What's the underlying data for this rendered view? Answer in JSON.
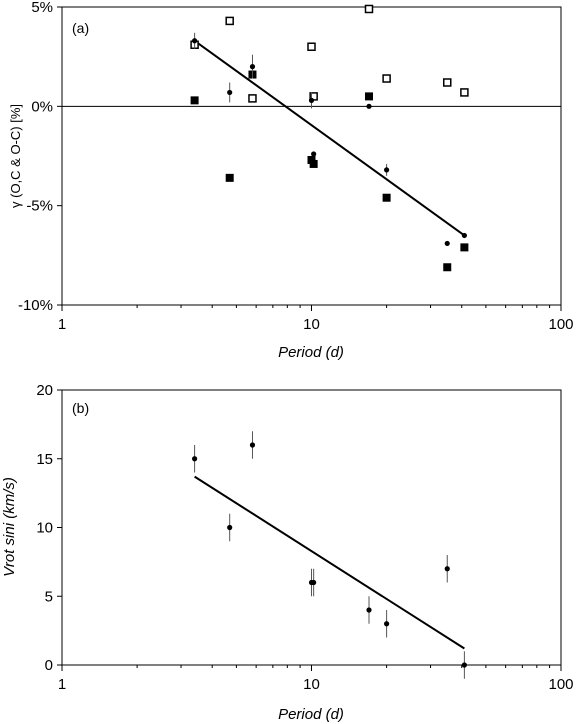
{
  "chart_data": [
    {
      "type": "scatter",
      "panel_label": "(a)",
      "xlabel": "Period (d)",
      "ylabel": "γ (O,C & O-C) [%]",
      "x_scale": "log",
      "xlim": [
        1,
        100
      ],
      "ylim": [
        -10,
        5
      ],
      "x_ticks": [
        1,
        10,
        100
      ],
      "x_tick_labels": [
        "1",
        "10",
        "100"
      ],
      "y_ticks": [
        5,
        0,
        -5,
        -10
      ],
      "y_tick_labels": [
        "5%",
        "0%",
        "-5%",
        "-10%"
      ],
      "zero_line": true,
      "series": [
        {
          "marker": "open-square",
          "points": [
            [
              3.4,
              3.1
            ],
            [
              4.7,
              4.3
            ],
            [
              5.8,
              0.4
            ],
            [
              10.0,
              3.0
            ],
            [
              10.2,
              0.5
            ],
            [
              17.0,
              4.9
            ],
            [
              20.0,
              1.4
            ],
            [
              35.0,
              1.2
            ],
            [
              41.0,
              0.7
            ]
          ]
        },
        {
          "marker": "filled-square",
          "points": [
            [
              3.4,
              0.3
            ],
            [
              4.7,
              -3.6
            ],
            [
              5.8,
              1.6
            ],
            [
              10.0,
              -2.7
            ],
            [
              10.2,
              -2.9
            ],
            [
              17.0,
              0.5
            ],
            [
              20.0,
              -4.6
            ],
            [
              35.0,
              -8.1
            ],
            [
              41.0,
              -7.1
            ]
          ]
        },
        {
          "marker": "dot",
          "points": [
            [
              3.4,
              3.3
            ],
            [
              4.7,
              0.7
            ],
            [
              5.8,
              2.0
            ],
            [
              10.0,
              0.3
            ],
            [
              10.2,
              -2.4
            ],
            [
              17.0,
              0.0
            ],
            [
              20.0,
              -3.2
            ],
            [
              35.0,
              -6.9
            ],
            [
              41.0,
              -6.5
            ]
          ],
          "errors": [
            0.4,
            0.5,
            0.6,
            0.4,
            0.0,
            0.0,
            0.3,
            0.0,
            0.0
          ]
        }
      ],
      "fit_line": [
        [
          3.4,
          3.3
        ],
        [
          41.0,
          -6.5
        ]
      ]
    },
    {
      "type": "scatter",
      "panel_label": "(b)",
      "xlabel": "Period (d)",
      "ylabel": "Vrot sini  (km/s)",
      "x_scale": "log",
      "xlim": [
        1,
        100
      ],
      "ylim": [
        0,
        20
      ],
      "x_ticks": [
        1,
        10,
        100
      ],
      "x_tick_labels": [
        "1",
        "10",
        "100"
      ],
      "y_ticks": [
        0,
        5,
        10,
        15,
        20
      ],
      "y_tick_labels": [
        "0",
        "5",
        "10",
        "15",
        "20"
      ],
      "series": [
        {
          "marker": "dot",
          "points": [
            [
              3.4,
              15
            ],
            [
              4.7,
              10
            ],
            [
              5.8,
              16
            ],
            [
              10.0,
              6
            ],
            [
              10.2,
              6
            ],
            [
              17.0,
              4
            ],
            [
              20.0,
              3
            ],
            [
              35.0,
              7
            ],
            [
              41.0,
              0
            ]
          ],
          "errors": [
            1,
            1,
            1,
            1,
            1,
            1,
            1,
            1,
            1
          ]
        }
      ],
      "fit_line": [
        [
          3.4,
          13.7
        ],
        [
          41.0,
          1.2
        ]
      ]
    }
  ]
}
